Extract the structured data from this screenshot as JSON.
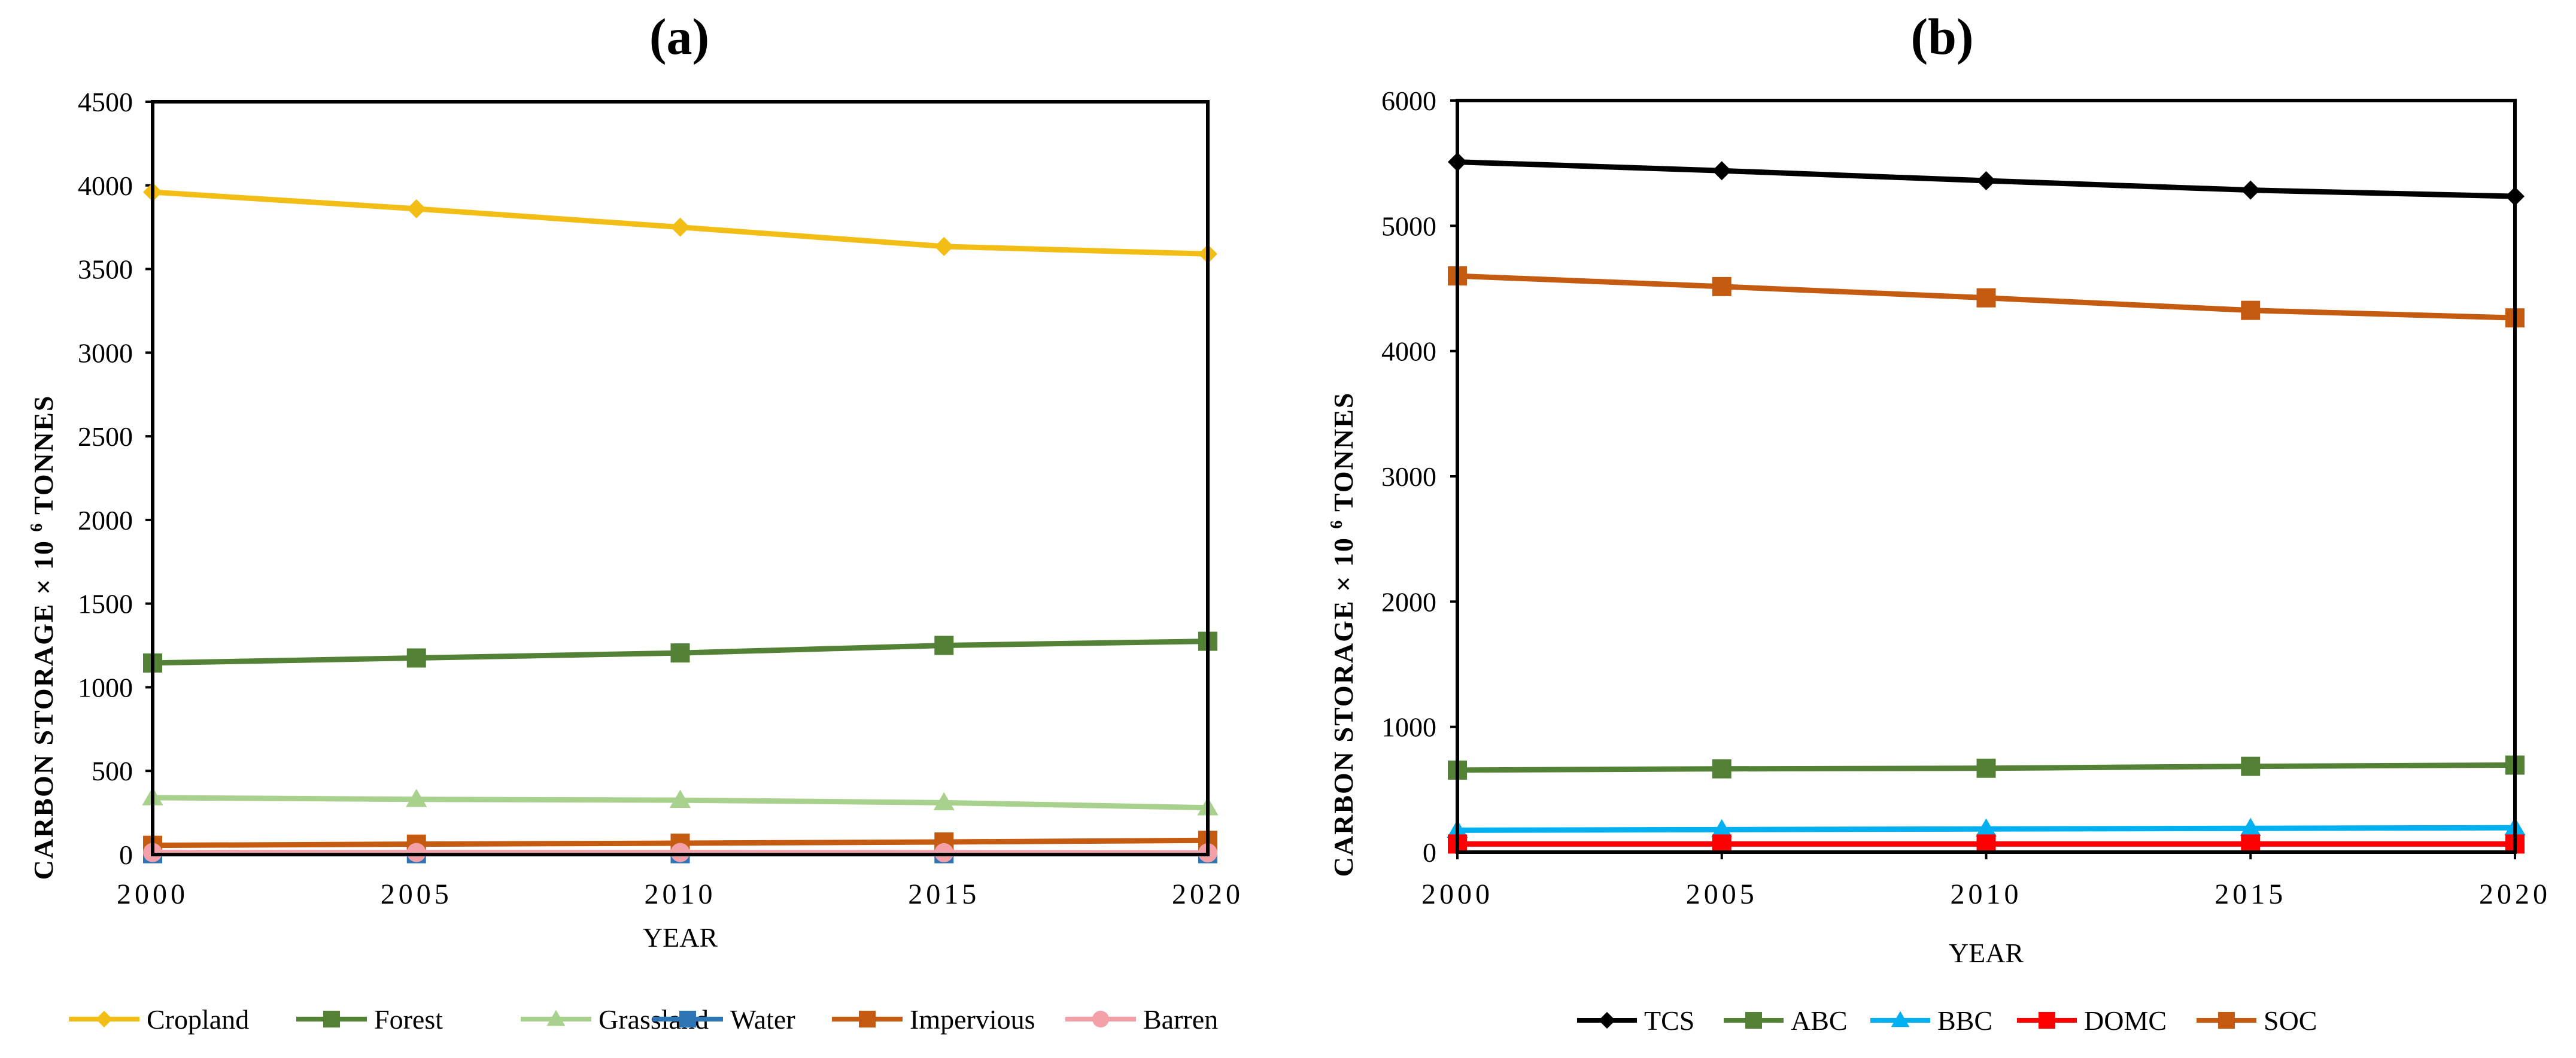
{
  "chart_data": [
    {
      "type": "line",
      "panel_label": "(a)",
      "title": "",
      "xlabel": "YEAR",
      "ylabel_prefix": "CARBON STORAGE × 10",
      "ylabel_exp": "6",
      "ylabel_suffix": " TONNES",
      "x": [
        2000,
        2005,
        2010,
        2015,
        2020
      ],
      "xlim": [
        2000,
        2020
      ],
      "ylim": [
        0,
        4500
      ],
      "yticks": [
        0,
        500,
        1000,
        1500,
        2000,
        2500,
        3000,
        3500,
        4000,
        4500
      ],
      "grid": false,
      "legend_position": "bottom",
      "series": [
        {
          "name": "Cropland",
          "color": "#F2BE16",
          "marker": "diamond",
          "values": [
            3960,
            3860,
            3750,
            3635,
            3590
          ]
        },
        {
          "name": "Forest",
          "color": "#538135",
          "marker": "square",
          "values": [
            1145,
            1175,
            1205,
            1250,
            1275
          ]
        },
        {
          "name": "Grassland",
          "color": "#A9D18E",
          "marker": "triangle",
          "values": [
            340,
            330,
            325,
            310,
            280
          ]
        },
        {
          "name": "Water",
          "color": "#2E75B6",
          "marker": "square",
          "values": [
            5,
            5,
            5,
            5,
            5
          ]
        },
        {
          "name": "Impervious",
          "color": "#C55A11",
          "marker": "square",
          "values": [
            55,
            62,
            68,
            75,
            85
          ]
        },
        {
          "name": "Barren",
          "color": "#F4A0A8",
          "marker": "circle",
          "values": [
            12,
            12,
            12,
            11,
            10
          ]
        }
      ]
    },
    {
      "type": "line",
      "panel_label": "(b)",
      "title": "",
      "xlabel": "YEAR",
      "ylabel_prefix": "CARBON STORAGE × 10",
      "ylabel_exp": "6",
      "ylabel_suffix": " TONNES",
      "x": [
        2000,
        2005,
        2010,
        2015,
        2020
      ],
      "xlim": [
        2000,
        2020
      ],
      "ylim": [
        0,
        6000
      ],
      "yticks": [
        0,
        1000,
        2000,
        3000,
        4000,
        5000,
        6000
      ],
      "grid": false,
      "legend_position": "bottom",
      "series": [
        {
          "name": "TCS",
          "color": "#000000",
          "marker": "diamond",
          "values": [
            5510,
            5440,
            5360,
            5285,
            5235
          ]
        },
        {
          "name": "ABC",
          "color": "#538135",
          "marker": "square",
          "values": [
            655,
            665,
            670,
            685,
            695
          ]
        },
        {
          "name": "BBC",
          "color": "#00B0F0",
          "marker": "triangle",
          "values": [
            175,
            180,
            185,
            190,
            195
          ]
        },
        {
          "name": "DOMC",
          "color": "#FF0000",
          "marker": "square",
          "values": [
            65,
            65,
            65,
            65,
            65
          ]
        },
        {
          "name": "SOC",
          "color": "#C55A11",
          "marker": "square",
          "values": [
            4600,
            4515,
            4425,
            4325,
            4265
          ]
        }
      ]
    }
  ]
}
